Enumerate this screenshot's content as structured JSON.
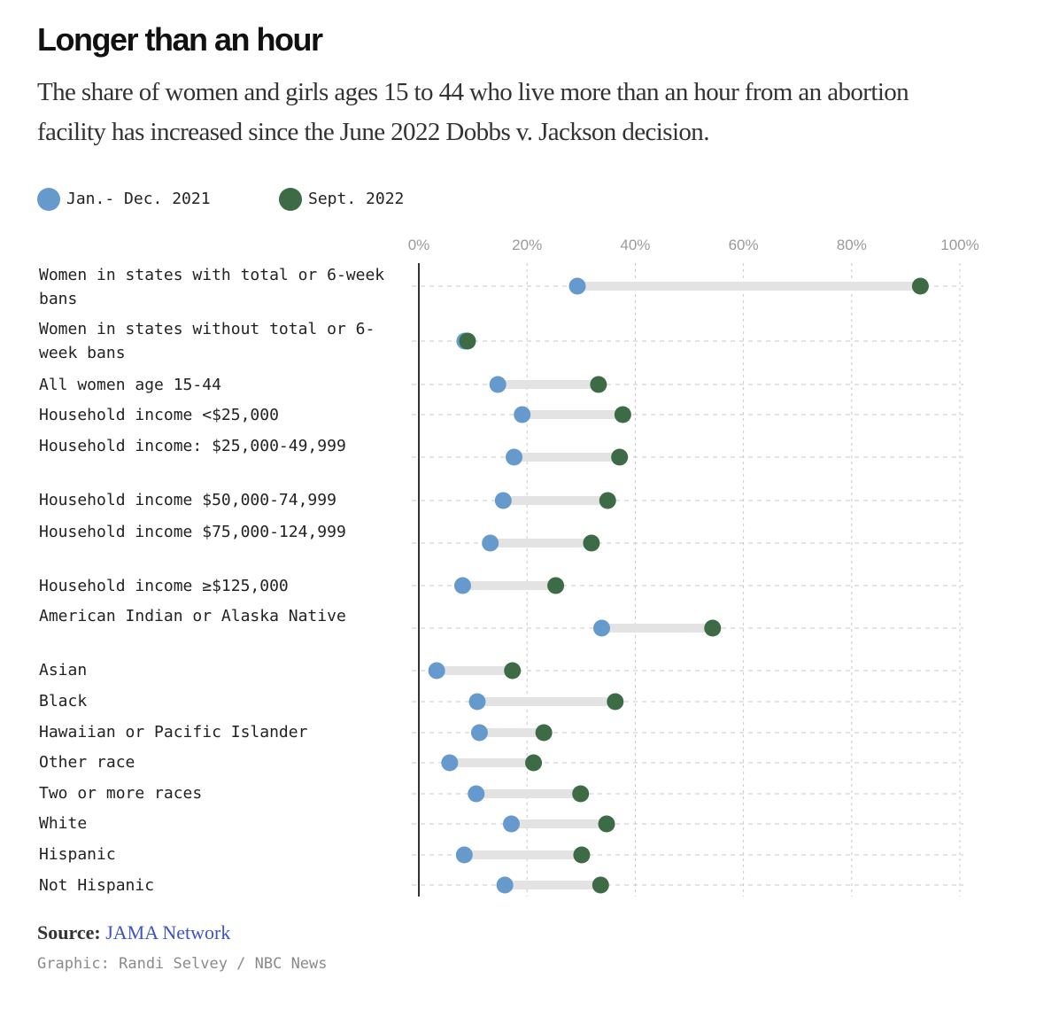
{
  "header": {
    "title": "Longer than an hour",
    "subtitle": "The share of women and girls ages 15 to 44 who live more than an hour from an abortion facility has increased since the June 2022 Dobbs v. Jackson decision."
  },
  "legend": [
    {
      "label": "Jan.- Dec. 2021",
      "color": "#6699cc"
    },
    {
      "label": "Sept. 2022",
      "color": "#3d6b45"
    }
  ],
  "footer": {
    "source_prefix": "Source:",
    "source_link": "JAMA Network",
    "credit": "Graphic: Randi Selvey / NBC News"
  },
  "colors": {
    "series_2021": "#6699cc",
    "series_2022": "#3d6b45",
    "connector": "#e3e3e3",
    "grid": "#c8c8c8",
    "axis": "#333333",
    "link": "#3b55c4"
  },
  "chart_data": {
    "type": "dot-plot",
    "x_ticks": [
      "0%",
      "20%",
      "40%",
      "60%",
      "80%",
      "100%"
    ],
    "xlim": [
      0,
      100
    ],
    "x_unit": "%",
    "grid": true,
    "legend_position": "top-left",
    "categories": [
      "Women in states with total or 6-week bans",
      "Women in states without total or 6-week bans",
      "All women age 15-44",
      "Household income <$25,000",
      "Household income: $25,000-49,999",
      "Household income $50,000-74,999",
      "Household income $75,000-124,999",
      "Household income ≥$125,000",
      "American Indian or Alaska Native",
      "Asian",
      "Black",
      "Hawaiian or Pacific Islander",
      "Other race",
      "Two or more races",
      "White",
      "Hispanic",
      "Not Hispanic"
    ],
    "series": [
      {
        "name": "Jan.- Dec. 2021",
        "values": [
          29.3,
          8.5,
          14.6,
          19.1,
          17.6,
          15.6,
          13.2,
          8.1,
          33.8,
          3.3,
          10.8,
          11.2,
          5.7,
          10.6,
          17.1,
          8.4,
          15.9
        ]
      },
      {
        "name": "Sept. 2022",
        "values": [
          92.7,
          9.0,
          33.2,
          37.7,
          37.1,
          34.9,
          31.9,
          25.3,
          54.3,
          17.3,
          36.3,
          23.1,
          21.2,
          29.9,
          34.7,
          30.1,
          33.6
        ]
      }
    ]
  }
}
